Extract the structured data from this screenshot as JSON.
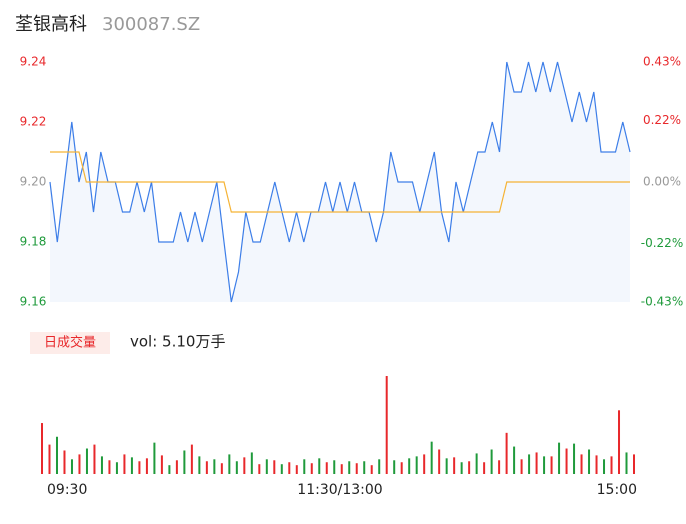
{
  "title": "荃银高科",
  "code": "300087.SZ",
  "chart_data": [
    {
      "type": "line",
      "x": [
        0,
        3,
        6,
        9,
        12,
        15,
        18,
        21,
        24,
        27,
        30,
        33,
        36,
        39,
        42,
        45,
        48,
        51,
        54,
        57,
        60,
        63,
        66,
        69,
        72,
        75,
        78,
        81,
        84,
        87,
        90,
        93,
        96,
        99,
        102,
        105,
        108,
        111,
        114,
        117,
        120,
        123,
        126,
        129,
        132,
        135,
        138,
        141,
        144,
        147,
        150,
        153,
        156,
        159,
        162,
        165,
        168,
        171,
        174,
        177,
        180,
        183,
        186,
        189,
        192,
        195,
        198,
        201,
        204,
        207,
        210,
        213,
        216,
        219,
        222,
        225,
        228,
        231,
        234,
        237,
        240
      ],
      "series": [
        {
          "name": "price",
          "color": "#3d7ee8",
          "values": [
            9.2,
            9.18,
            9.2,
            9.22,
            9.2,
            9.21,
            9.19,
            9.21,
            9.2,
            9.2,
            9.19,
            9.19,
            9.2,
            9.19,
            9.2,
            9.18,
            9.18,
            9.18,
            9.19,
            9.18,
            9.19,
            9.18,
            9.19,
            9.2,
            9.18,
            9.16,
            9.17,
            9.19,
            9.18,
            9.18,
            9.19,
            9.2,
            9.19,
            9.18,
            9.19,
            9.18,
            9.19,
            9.19,
            9.2,
            9.19,
            9.2,
            9.19,
            9.2,
            9.19,
            9.19,
            9.18,
            9.19,
            9.21,
            9.2,
            9.2,
            9.2,
            9.19,
            9.2,
            9.21,
            9.19,
            9.18,
            9.2,
            9.19,
            9.2,
            9.21,
            9.21,
            9.22,
            9.21,
            9.24,
            9.23,
            9.23,
            9.24,
            9.23,
            9.24,
            9.23,
            9.24,
            9.23,
            9.22,
            9.23,
            9.22,
            9.23,
            9.21,
            9.21,
            9.21,
            9.22,
            9.21
          ]
        },
        {
          "name": "average",
          "color": "#f5b335",
          "values": [
            9.21,
            9.21,
            9.21,
            9.21,
            9.21,
            9.2,
            9.2,
            9.2,
            9.2,
            9.2,
            9.2,
            9.2,
            9.2,
            9.2,
            9.2,
            9.2,
            9.2,
            9.2,
            9.2,
            9.2,
            9.2,
            9.2,
            9.2,
            9.2,
            9.2,
            9.19,
            9.19,
            9.19,
            9.19,
            9.19,
            9.19,
            9.19,
            9.19,
            9.19,
            9.19,
            9.19,
            9.19,
            9.19,
            9.19,
            9.19,
            9.19,
            9.19,
            9.19,
            9.19,
            9.19,
            9.19,
            9.19,
            9.19,
            9.19,
            9.19,
            9.19,
            9.19,
            9.19,
            9.19,
            9.19,
            9.19,
            9.19,
            9.19,
            9.19,
            9.19,
            9.19,
            9.19,
            9.19,
            9.2,
            9.2,
            9.2,
            9.2,
            9.2,
            9.2,
            9.2,
            9.2,
            9.2,
            9.2,
            9.2,
            9.2,
            9.2,
            9.2,
            9.2,
            9.2,
            9.2,
            9.2
          ]
        }
      ],
      "xlim": [
        0,
        240
      ],
      "xticks": [
        {
          "value": 0,
          "label": "09:30"
        },
        {
          "value": 120,
          "label": "11:30/13:00"
        },
        {
          "value": 240,
          "label": "15:00"
        }
      ],
      "ylim": [
        9.16,
        9.24
      ],
      "yticks": [
        {
          "value": 9.16,
          "label": "9.16"
        },
        {
          "value": 9.18,
          "label": "9.18"
        },
        {
          "value": 9.2,
          "label": "9.20"
        },
        {
          "value": 9.22,
          "label": "9.22"
        },
        {
          "value": 9.24,
          "label": "9.24"
        }
      ],
      "y2lim": [
        -0.43,
        0.43
      ],
      "y2ticks": [
        {
          "value": -0.43,
          "label": "-0.43%"
        },
        {
          "value": -0.22,
          "label": "-0.22%"
        },
        {
          "value": 0,
          "label": "0.00%"
        },
        {
          "value": 0.22,
          "label": "0.22%"
        },
        {
          "value": 0.43,
          "label": "0.43%"
        }
      ],
      "up_color": "#e8282b",
      "down_color": "#1f9a3b",
      "flat_color": "#999999"
    },
    {
      "type": "volume",
      "label": "日成交量",
      "total": "vol: 5.10万手",
      "values": [
        520,
        300,
        380,
        240,
        150,
        200,
        260,
        300,
        180,
        140,
        120,
        200,
        170,
        130,
        160,
        320,
        190,
        90,
        140,
        240,
        300,
        180,
        130,
        150,
        110,
        200,
        130,
        170,
        220,
        100,
        150,
        140,
        100,
        120,
        90,
        150,
        110,
        160,
        120,
        140,
        100,
        130,
        110,
        130,
        90,
        150,
        1000,
        140,
        120,
        160,
        180,
        200,
        330,
        250,
        160,
        170,
        120,
        130,
        210,
        120,
        250,
        140,
        420,
        280,
        150,
        200,
        220,
        180,
        180,
        320,
        260,
        310,
        200,
        250,
        190,
        150,
        180,
        650,
        220,
        200
      ],
      "rising": [
        true,
        true,
        false,
        true,
        false,
        true,
        false,
        true,
        false,
        true,
        false,
        true,
        false,
        true,
        true,
        false,
        true,
        false,
        true,
        false,
        true,
        false,
        true,
        false,
        true,
        false,
        false,
        true,
        false,
        true,
        false,
        true,
        false,
        true,
        true,
        false,
        true,
        false,
        true,
        false,
        true,
        false,
        true,
        false,
        true,
        false,
        true,
        false,
        true,
        false,
        false,
        true,
        false,
        true,
        false,
        true,
        false,
        true,
        false,
        true,
        false,
        true,
        true,
        false,
        true,
        false,
        true,
        false,
        true,
        false,
        true,
        false,
        true,
        false,
        true,
        false,
        true,
        true,
        false,
        true
      ],
      "up_color": "#e8282b",
      "down_color": "#1f9a3b"
    }
  ]
}
